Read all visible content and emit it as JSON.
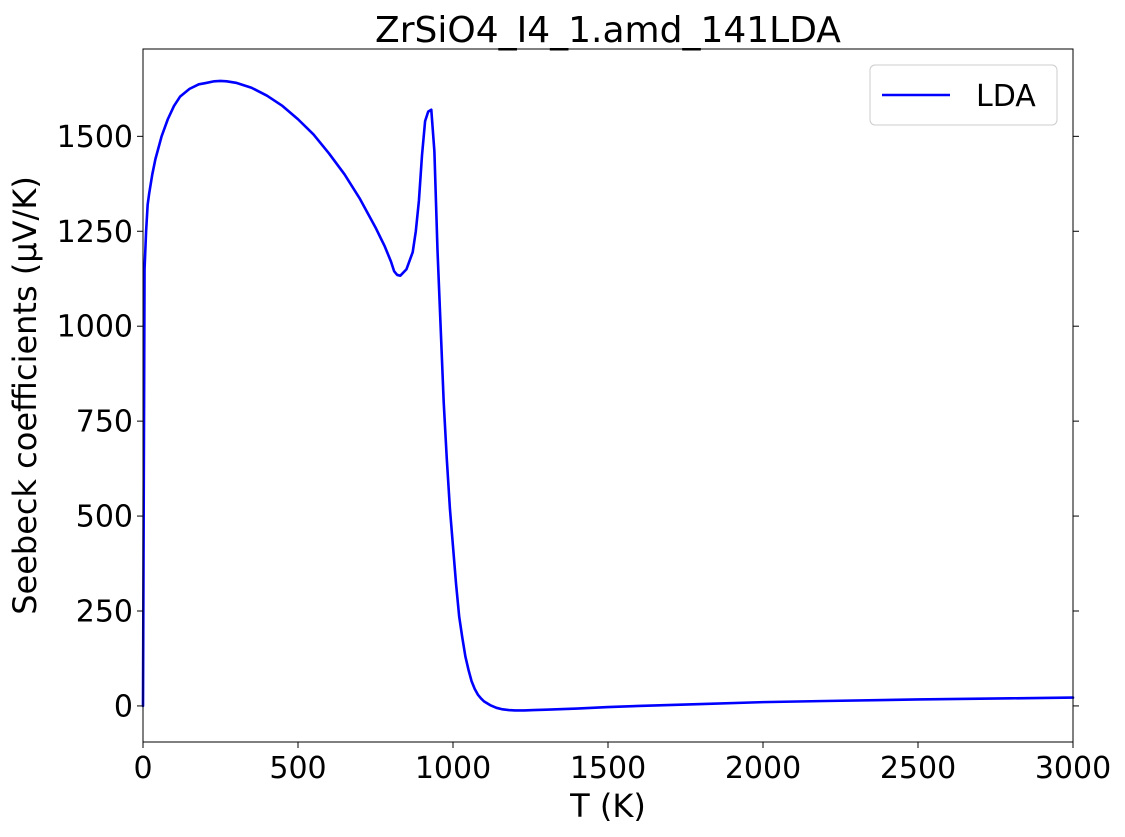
{
  "chart_data": {
    "type": "line",
    "title": "ZrSiO4_I4_1.amd_141LDA",
    "xlabel": "T (K)",
    "ylabel": "Seebeck coefficients (μV/K)",
    "xlim": [
      0,
      3000
    ],
    "ylim": [
      -95,
      1730
    ],
    "xticks": [
      0,
      500,
      1000,
      1500,
      2000,
      2500,
      3000
    ],
    "xtick_labels": [
      "0",
      "500",
      "1000",
      "1500",
      "2000",
      "2500",
      "3000"
    ],
    "yticks": [
      0,
      250,
      500,
      750,
      1000,
      1250,
      1500
    ],
    "ytick_labels": [
      "0",
      "250",
      "500",
      "750",
      "1000",
      "1250",
      "1500"
    ],
    "grid": false,
    "legend": "top-right",
    "series": [
      {
        "name": "LDA",
        "color": "#0000ff",
        "x": [
          0,
          5,
          10,
          15,
          20,
          30,
          40,
          50,
          60,
          80,
          100,
          120,
          150,
          180,
          200,
          230,
          250,
          270,
          300,
          350,
          400,
          450,
          500,
          550,
          600,
          650,
          700,
          750,
          780,
          800,
          810,
          820,
          830,
          850,
          870,
          880,
          890,
          900,
          910,
          920,
          930,
          940,
          950,
          960,
          970,
          980,
          990,
          1000,
          1010,
          1020,
          1030,
          1040,
          1050,
          1060,
          1070,
          1080,
          1090,
          1100,
          1120,
          1140,
          1160,
          1180,
          1200,
          1230,
          1260,
          1300,
          1400,
          1500,
          1600,
          1800,
          2000,
          2200,
          2500,
          2800,
          3000
        ],
        "y": [
          0,
          1150,
          1250,
          1320,
          1350,
          1400,
          1440,
          1470,
          1500,
          1545,
          1580,
          1605,
          1625,
          1637,
          1640,
          1645,
          1646,
          1645,
          1641,
          1628,
          1607,
          1580,
          1545,
          1505,
          1455,
          1400,
          1335,
          1260,
          1210,
          1170,
          1145,
          1135,
          1133,
          1150,
          1195,
          1250,
          1330,
          1450,
          1540,
          1565,
          1570,
          1460,
          1200,
          1000,
          800,
          650,
          520,
          420,
          320,
          235,
          180,
          130,
          95,
          65,
          45,
          30,
          20,
          12,
          2,
          -5,
          -9,
          -11,
          -12,
          -12,
          -11,
          -10,
          -7,
          -3,
          0,
          5,
          10,
          13,
          17,
          20,
          22
        ]
      }
    ]
  }
}
